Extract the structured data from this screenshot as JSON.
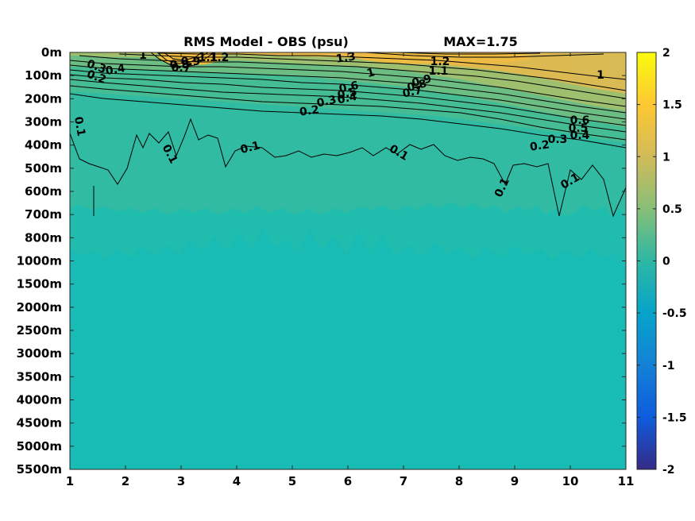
{
  "chart_data": {
    "type": "heatmap",
    "title": "RMS Model - OBS (psu)",
    "max_text": "MAX=1.75",
    "x": {
      "range": [
        1,
        11
      ],
      "ticks": [
        "1",
        "2",
        "3",
        "4",
        "5",
        "6",
        "7",
        "8",
        "9",
        "10",
        "11"
      ]
    },
    "y": {
      "ticks": [
        "0m",
        "100m",
        "200m",
        "300m",
        "400m",
        "500m",
        "600m",
        "700m",
        "800m",
        "1000m",
        "1500m",
        "2000m",
        "2500m",
        "3000m",
        "3500m",
        "4000m",
        "4500m",
        "5000m",
        "5500m"
      ]
    },
    "colorbar": {
      "range": [
        -2,
        2
      ],
      "ticks": [
        "2",
        "1.5",
        "1",
        "0.5",
        "0",
        "-0.5",
        "-1",
        "-1.5",
        "-2"
      ],
      "colormap": "parula"
    },
    "contour_labels": [
      {
        "text": "1",
        "x": 2.3,
        "depth": "0m"
      },
      {
        "text": "1.3",
        "x": 5.95,
        "depth": "0m"
      },
      {
        "text": "1.2",
        "x": 7.65,
        "depth": "0m"
      },
      {
        "text": "1.1",
        "x": 7.65,
        "depth": "100m"
      },
      {
        "text": "1",
        "x": 6.45,
        "depth": "100m"
      },
      {
        "text": "1",
        "x": 10.55,
        "depth": "100m"
      },
      {
        "text": "0.9",
        "x": 7.35,
        "depth": "100m"
      },
      {
        "text": "0.8",
        "x": 7.25,
        "depth": "100m"
      },
      {
        "text": "0.7",
        "x": 7.2,
        "depth": "200m"
      },
      {
        "text": "0.6",
        "x": 6.05,
        "depth": "100m"
      },
      {
        "text": "0.5",
        "x": 6.0,
        "depth": "200m"
      },
      {
        "text": "0.4",
        "x": 6.0,
        "depth": "200m"
      },
      {
        "text": "0.3",
        "x": 5.65,
        "depth": "200m"
      },
      {
        "text": "0.2",
        "x": 5.3,
        "depth": "300m"
      },
      {
        "text": "0.4",
        "x": 1.85,
        "depth": "100m"
      },
      {
        "text": "0.3",
        "x": 1.5,
        "depth": "100m"
      },
      {
        "text": "0.2",
        "x": 1.45,
        "depth": "100m"
      },
      {
        "text": "0.1",
        "x": 1.1,
        "depth": "300m"
      },
      {
        "text": "0.1",
        "x": 2.7,
        "depth": "400m"
      },
      {
        "text": "0.1",
        "x": 4.25,
        "depth": "400m"
      },
      {
        "text": "0.1",
        "x": 6.85,
        "depth": "400m"
      },
      {
        "text": "0.1",
        "x": 8.8,
        "depth": "600m"
      },
      {
        "text": "0.1",
        "x": 10.0,
        "depth": "600m"
      },
      {
        "text": "0.6",
        "x": 10.2,
        "depth": "300m"
      },
      {
        "text": "0.5",
        "x": 10.15,
        "depth": "300m"
      },
      {
        "text": "0.4",
        "x": 10.15,
        "depth": "400m"
      },
      {
        "text": "0.3",
        "x": 9.75,
        "depth": "400m"
      },
      {
        "text": "0.2",
        "x": 9.45,
        "depth": "400m"
      },
      {
        "text": "0.9",
        "x": 2.95,
        "depth": "0m"
      },
      {
        "text": "0.8",
        "x": 2.85,
        "depth": "100m"
      },
      {
        "text": "0.7",
        "x": 2.75,
        "depth": "100m"
      },
      {
        "text": "1.1",
        "x": 3.35,
        "depth": "0m"
      },
      {
        "text": "1.2",
        "x": 3.55,
        "depth": "0m"
      }
    ]
  }
}
